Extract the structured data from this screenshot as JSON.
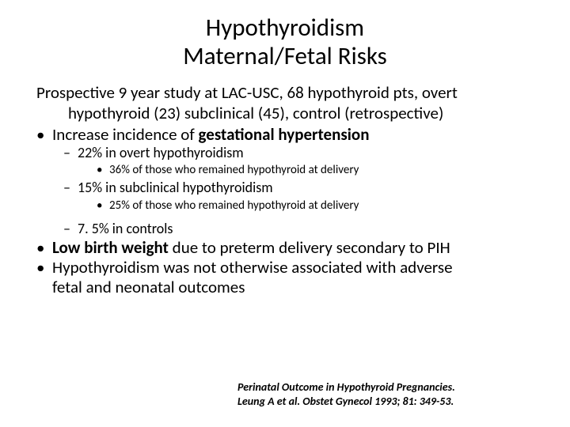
{
  "title": {
    "line1": "Hypothyroidism",
    "line2": "Maternal/Fetal  Risks"
  },
  "intro": {
    "line1": "Prospective 9 year study at LAC-USC, 68 hypothyroid pts, overt",
    "line2": "hypothyroid (23) subclinical (45), control (retrospective)"
  },
  "b1": {
    "pre": "Increase incidence of ",
    "bold": "gestational hypertension"
  },
  "b1a": "22% in overt hypothyroidism",
  "b1a1": "36% of those who remained hypothyroid at delivery",
  "b1b": "15% in subclinical hypothyroidism",
  "b1b1": "25% of those who remained hypothyroid at delivery",
  "b1c": "7. 5% in controls",
  "b2": {
    "bold": "Low birth weight ",
    "post": "due to preterm delivery secondary to PIH"
  },
  "b3": {
    "line1": "Hypothyroidism was not otherwise associated with adverse",
    "line2": "fetal and neonatal outcomes"
  },
  "citation": {
    "line1": "Perinatal Outcome in Hypothyroid Pregnancies.",
    "line2": "Leung A et al. Obstet Gynecol 1993; 81: 349-53."
  },
  "colors": {
    "text": "#000000",
    "background": "#ffffff"
  },
  "typography": {
    "title_size": 31,
    "body_size": 21,
    "sub_size": 18,
    "subsub_size": 15,
    "cite_size": 14,
    "family": "Calibri"
  }
}
